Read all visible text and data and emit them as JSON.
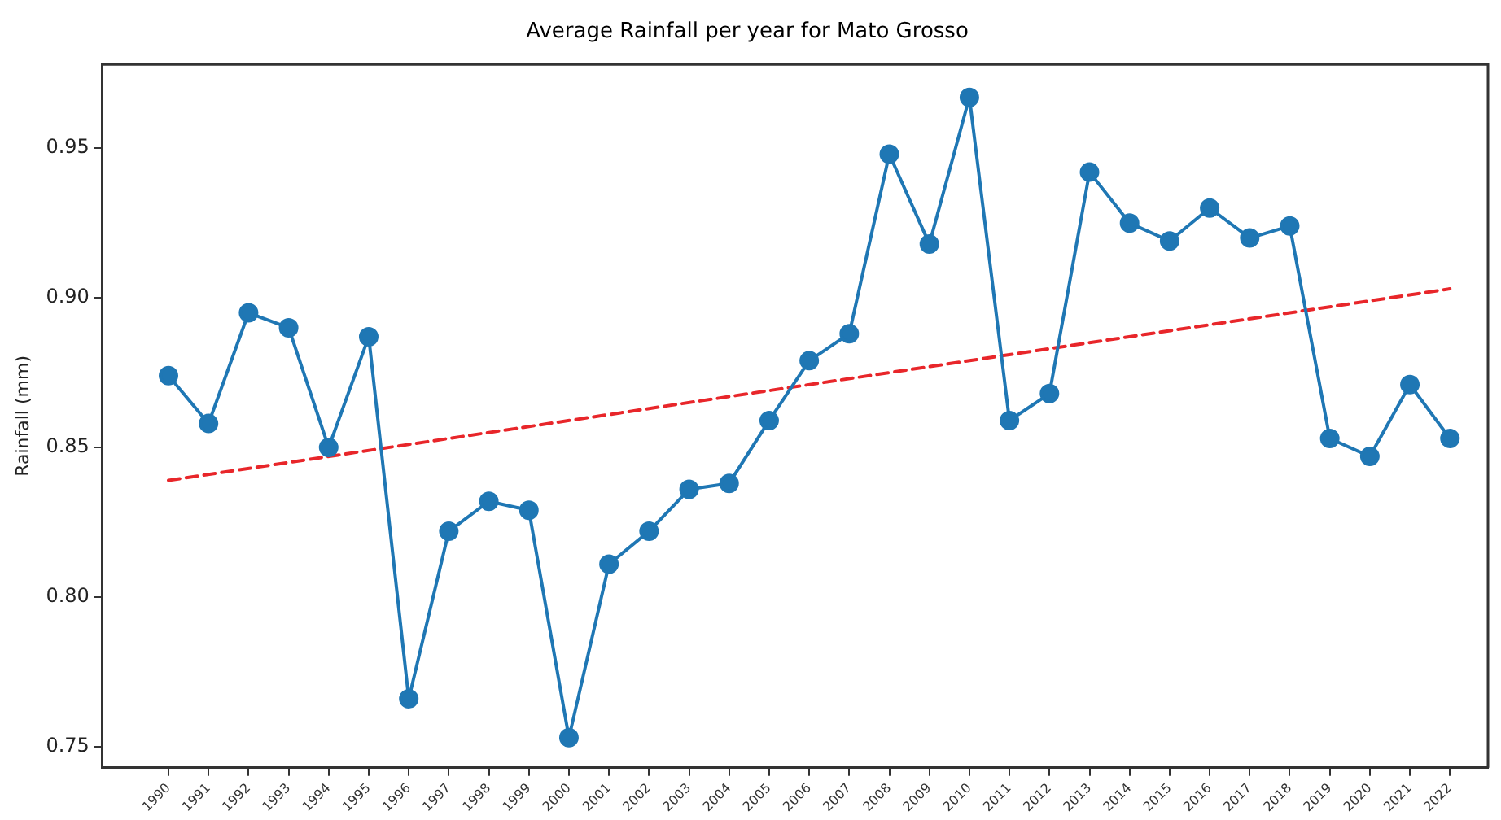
{
  "chart_data": {
    "type": "line",
    "title": "Average Rainfall per year for Mato Grosso",
    "ylabel": "Rainfall (mm)",
    "x": [
      1990,
      1991,
      1992,
      1993,
      1994,
      1995,
      1996,
      1997,
      1998,
      1999,
      2000,
      2001,
      2002,
      2003,
      2004,
      2005,
      2006,
      2007,
      2008,
      2009,
      2010,
      2011,
      2012,
      2013,
      2014,
      2015,
      2016,
      2017,
      2018,
      2019,
      2020,
      2021,
      2022
    ],
    "series": [
      {
        "type": "line",
        "color": "#1f77b4",
        "marker": "circle",
        "line_style": "solid",
        "values": [
          0.874,
          0.858,
          0.895,
          0.89,
          0.85,
          0.887,
          0.766,
          0.822,
          0.832,
          0.829,
          0.753,
          0.811,
          0.822,
          0.836,
          0.838,
          0.859,
          0.879,
          0.888,
          0.948,
          0.918,
          0.967,
          0.859,
          0.868,
          0.942,
          0.925,
          0.919,
          0.93,
          0.92,
          0.924,
          0.853,
          0.847,
          0.871,
          0.853
        ]
      },
      {
        "type": "line",
        "color": "#e8262a",
        "marker": "none",
        "line_style": "dashed",
        "x": [
          1990,
          2022
        ],
        "values": [
          0.839,
          0.903
        ]
      }
    ],
    "xlim": [
      1988.35,
      2022.95
    ],
    "xticks": [
      1990,
      1991,
      1992,
      1993,
      1994,
      1995,
      1996,
      1997,
      1998,
      1999,
      2000,
      2001,
      2002,
      2003,
      2004,
      2005,
      2006,
      2007,
      2008,
      2009,
      2010,
      2011,
      2012,
      2013,
      2014,
      2015,
      2016,
      2017,
      2018,
      2019,
      2020,
      2021,
      2022
    ],
    "ylim": [
      0.743,
      0.978
    ],
    "yticks": [
      {
        "value": 0.75,
        "label": "0.75"
      },
      {
        "value": 0.8,
        "label": "0.80"
      },
      {
        "value": 0.85,
        "label": "0.85"
      },
      {
        "value": 0.9,
        "label": "0.90"
      },
      {
        "value": 0.95,
        "label": "0.95"
      }
    ],
    "grid": false,
    "legend": false
  }
}
